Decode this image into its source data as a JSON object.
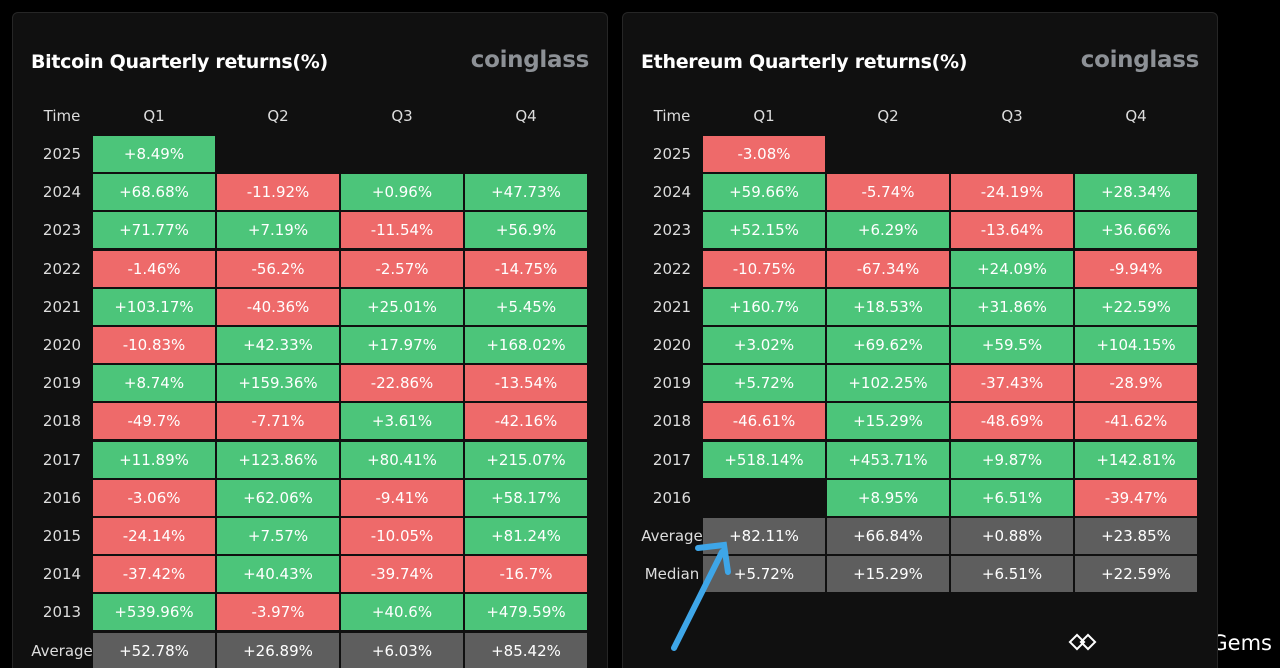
{
  "colors": {
    "positive": "#4cc57a",
    "negative": "#ee6a6a",
    "summary": "#5e5e5e"
  },
  "panels": [
    {
      "title": "Bitcoin Quarterly returns(%)",
      "brand": "coinglass",
      "header": [
        "Time",
        "Q1",
        "Q2",
        "Q3",
        "Q4"
      ],
      "rows": [
        {
          "label": "2025",
          "cells": [
            "+8.49%",
            null,
            null,
            null
          ]
        },
        {
          "label": "2024",
          "cells": [
            "+68.68%",
            "-11.92%",
            "+0.96%",
            "+47.73%"
          ]
        },
        {
          "label": "2023",
          "cells": [
            "+71.77%",
            "+7.19%",
            "-11.54%",
            "+56.9%"
          ]
        },
        {
          "label": "2022",
          "cells": [
            "-1.46%",
            "-56.2%",
            "-2.57%",
            "-14.75%"
          ]
        },
        {
          "label": "2021",
          "cells": [
            "+103.17%",
            "-40.36%",
            "+25.01%",
            "+5.45%"
          ]
        },
        {
          "label": "2020",
          "cells": [
            "-10.83%",
            "+42.33%",
            "+17.97%",
            "+168.02%"
          ]
        },
        {
          "label": "2019",
          "cells": [
            "+8.74%",
            "+159.36%",
            "-22.86%",
            "-13.54%"
          ]
        },
        {
          "label": "2018",
          "cells": [
            "-49.7%",
            "-7.71%",
            "+3.61%",
            "-42.16%"
          ]
        },
        {
          "label": "2017",
          "cells": [
            "+11.89%",
            "+123.86%",
            "+80.41%",
            "+215.07%"
          ]
        },
        {
          "label": "2016",
          "cells": [
            "-3.06%",
            "+62.06%",
            "-9.41%",
            "+58.17%"
          ]
        },
        {
          "label": "2015",
          "cells": [
            "-24.14%",
            "+7.57%",
            "-10.05%",
            "+81.24%"
          ]
        },
        {
          "label": "2014",
          "cells": [
            "-37.42%",
            "+40.43%",
            "-39.74%",
            "-16.7%"
          ]
        },
        {
          "label": "2013",
          "cells": [
            "+539.96%",
            "-3.97%",
            "+40.6%",
            "+479.59%"
          ]
        },
        {
          "label": "Average",
          "cells": [
            "+52.78%",
            "+26.89%",
            "+6.03%",
            "+85.42%"
          ],
          "summary": true
        }
      ]
    },
    {
      "title": "Ethereum Quarterly returns(%)",
      "brand": "coinglass",
      "header": [
        "Time",
        "Q1",
        "Q2",
        "Q3",
        "Q4"
      ],
      "rows": [
        {
          "label": "2025",
          "cells": [
            "-3.08%",
            null,
            null,
            null
          ]
        },
        {
          "label": "2024",
          "cells": [
            "+59.66%",
            "-5.74%",
            "-24.19%",
            "+28.34%"
          ]
        },
        {
          "label": "2023",
          "cells": [
            "+52.15%",
            "+6.29%",
            "-13.64%",
            "+36.66%"
          ]
        },
        {
          "label": "2022",
          "cells": [
            "-10.75%",
            "-67.34%",
            "+24.09%",
            "-9.94%"
          ]
        },
        {
          "label": "2021",
          "cells": [
            "+160.7%",
            "+18.53%",
            "+31.86%",
            "+22.59%"
          ]
        },
        {
          "label": "2020",
          "cells": [
            "+3.02%",
            "+69.62%",
            "+59.5%",
            "+104.15%"
          ]
        },
        {
          "label": "2019",
          "cells": [
            "+5.72%",
            "+102.25%",
            "-37.43%",
            "-28.9%"
          ]
        },
        {
          "label": "2018",
          "cells": [
            "-46.61%",
            "+15.29%",
            "-48.69%",
            "-41.62%"
          ]
        },
        {
          "label": "2017",
          "cells": [
            "+518.14%",
            "+453.71%",
            "+9.87%",
            "+142.81%"
          ]
        },
        {
          "label": "2016",
          "cells": [
            null,
            "+8.95%",
            "+6.51%",
            "-39.47%"
          ]
        },
        {
          "label": "Average",
          "cells": [
            "+82.11%",
            "+66.84%",
            "+0.88%",
            "+23.85%"
          ],
          "summary": true
        },
        {
          "label": "Median",
          "cells": [
            "+5.72%",
            "+15.29%",
            "+6.51%",
            "+22.59%"
          ],
          "summary": true
        }
      ]
    }
  ],
  "watermark": "@Gamefi Gems"
}
